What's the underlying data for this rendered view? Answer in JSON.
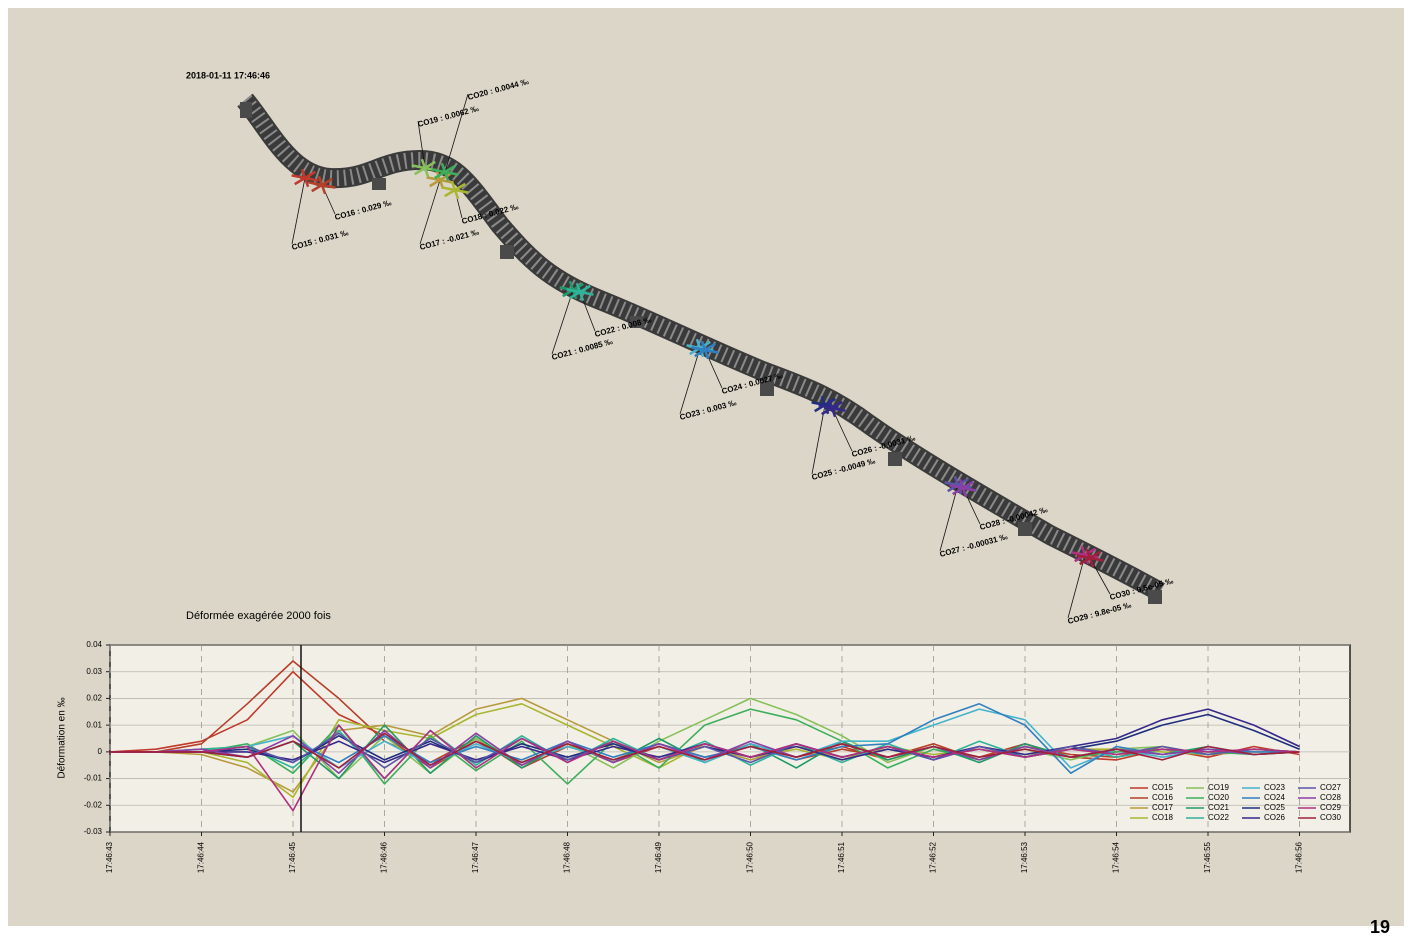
{
  "header": {
    "timestamp": "2018-01-11 17:46:46",
    "caption": "Déformée exagérée 2000 fois"
  },
  "bridge": {
    "sensors": [
      "CO15 : 0.031 ‰",
      "CO16 : 0.029 ‰",
      "CO17 : -0.021 ‰",
      "CO18 : 0.022 ‰",
      "CO19 : 0.0062 ‰",
      "CO20 : 0.0044 ‰",
      "CO21 : 0.0085 ‰",
      "CO22 : 0.008 ‰",
      "CO23 : 0.003 ‰",
      "CO24 : 0.0027 ‰",
      "CO25 : -0.0049 ‰",
      "CO26 : -0.0031 ‰",
      "CO27 : -0.00031 ‰",
      "CO28 : -0.00042 ‰",
      "CO29 : 9.8e-05 ‰",
      "CO30 : 9.5e-05 ‰"
    ]
  },
  "page_number": "19",
  "chart_data": {
    "type": "line",
    "ylabel": "Déformation en ‰",
    "categories": [
      "17:46:43",
      null,
      "17:46:44",
      null,
      "17:46:45",
      null,
      "17:46:46",
      null,
      "17:46:47",
      null,
      "17:46:48",
      null,
      "17:46:49",
      null,
      "17:46:50",
      null,
      "17:46:51",
      null,
      "17:46:52",
      null,
      "17:46:53",
      null,
      "17:46:54",
      null,
      "17:46:55",
      null,
      "17:46:56"
    ],
    "ylim": [
      -0.03,
      0.04
    ],
    "yticks": [
      -0.03,
      -0.02,
      -0.01,
      0,
      0.01,
      0.02,
      0.03,
      0.04
    ],
    "grid": true,
    "series": [
      {
        "name": "CO15",
        "color": "#c0392b",
        "values": [
          0,
          0.001,
          0.004,
          0.012,
          0.03,
          0.014,
          0.006,
          -0.006,
          0.004,
          -0.005,
          0.003,
          -0.004,
          0.002,
          -0.003,
          0.003,
          -0.002,
          0.002,
          -0.003,
          0.002,
          -0.002,
          0.003,
          -0.002,
          -0.003,
          0.001,
          -0.002,
          0.002,
          -0.001
        ]
      },
      {
        "name": "CO16",
        "color": "#b5402a",
        "values": [
          0,
          0,
          0.003,
          0.018,
          0.034,
          0.02,
          0.004,
          -0.004,
          0.005,
          -0.006,
          0.002,
          -0.003,
          0.003,
          -0.002,
          0.002,
          -0.003,
          0.001,
          -0.002,
          0.003,
          -0.003,
          0.002,
          -0.001,
          -0.002,
          0.002,
          -0.001,
          0.001,
          0
        ]
      },
      {
        "name": "CO17",
        "color": "#b89a3c",
        "values": [
          0,
          0,
          -0.001,
          -0.006,
          -0.015,
          0.008,
          0.01,
          0.006,
          0.016,
          0.02,
          0.012,
          0.004,
          -0.004,
          0.002,
          -0.003,
          0.002,
          -0.002,
          0.001,
          -0.002,
          0.002,
          -0.001,
          0.001,
          0,
          0.001,
          -0.001,
          0,
          0
        ]
      },
      {
        "name": "CO18",
        "color": "#aab530",
        "values": [
          0,
          0,
          0,
          -0.004,
          -0.017,
          0.012,
          0.008,
          0.005,
          0.014,
          0.018,
          0.01,
          0.002,
          -0.006,
          0.003,
          -0.002,
          0.001,
          -0.003,
          0.002,
          -0.001,
          0.001,
          -0.002,
          0.001,
          0.001,
          0,
          -0.001,
          0.001,
          0
        ]
      },
      {
        "name": "CO19",
        "color": "#86c05a",
        "values": [
          0,
          0,
          0.001,
          0.002,
          0.008,
          -0.01,
          0.006,
          -0.008,
          0.005,
          -0.004,
          0.003,
          -0.006,
          0.004,
          0.012,
          0.02,
          0.014,
          0.006,
          -0.004,
          0.002,
          -0.002,
          0.001,
          -0.003,
          0.001,
          0.002,
          -0.001,
          0.001,
          0
        ]
      },
      {
        "name": "CO20",
        "color": "#3cae5c",
        "values": [
          0,
          0,
          0,
          0.003,
          -0.008,
          0.01,
          -0.012,
          0.006,
          -0.007,
          0.004,
          -0.012,
          0.004,
          -0.006,
          0.01,
          0.016,
          0.012,
          0.004,
          -0.006,
          0.001,
          -0.003,
          0.002,
          -0.002,
          0,
          0.001,
          0,
          -0.001,
          0
        ]
      },
      {
        "name": "CO21",
        "color": "#1f9a68",
        "values": [
          0,
          0,
          0,
          -0.002,
          0.004,
          -0.01,
          0.01,
          -0.008,
          0.006,
          -0.006,
          0.004,
          -0.004,
          0.005,
          -0.004,
          0.003,
          -0.006,
          0.004,
          -0.003,
          0.002,
          -0.004,
          0.003,
          -0.002,
          0.001,
          -0.001,
          0.002,
          -0.001,
          0
        ]
      },
      {
        "name": "CO22",
        "color": "#2fb39a",
        "values": [
          0,
          0,
          0.001,
          0.002,
          -0.006,
          0.008,
          -0.01,
          0.008,
          -0.005,
          0.006,
          -0.004,
          0.005,
          -0.003,
          0.004,
          -0.005,
          0.003,
          -0.004,
          0.003,
          -0.003,
          0.004,
          -0.002,
          0.002,
          -0.002,
          0.001,
          -0.001,
          0.001,
          0
        ]
      },
      {
        "name": "CO23",
        "color": "#45b3cc",
        "values": [
          0,
          0,
          0,
          0.002,
          0.006,
          -0.006,
          0.004,
          -0.005,
          0.003,
          -0.004,
          0.002,
          -0.003,
          0.002,
          -0.004,
          0.003,
          -0.002,
          0.004,
          0.004,
          0.01,
          0.016,
          0.012,
          -0.006,
          0.001,
          -0.002,
          0.001,
          -0.001,
          0
        ]
      },
      {
        "name": "CO24",
        "color": "#2f7fc1",
        "values": [
          0,
          0,
          0,
          -0.002,
          0.004,
          -0.004,
          0.006,
          -0.004,
          0.002,
          -0.003,
          0.004,
          -0.002,
          0.003,
          -0.002,
          0.002,
          -0.003,
          0.002,
          0.003,
          0.012,
          0.018,
          0.01,
          -0.008,
          0.002,
          -0.001,
          0.001,
          0,
          0
        ]
      },
      {
        "name": "CO25",
        "color": "#1f2f7f",
        "values": [
          0,
          0,
          0,
          0.001,
          -0.004,
          0.006,
          -0.003,
          0.004,
          -0.004,
          0.003,
          -0.002,
          0.003,
          -0.003,
          0.002,
          -0.002,
          0.003,
          -0.002,
          0.002,
          -0.003,
          0.002,
          -0.002,
          0.001,
          0.004,
          0.01,
          0.014,
          0.008,
          0.001
        ]
      },
      {
        "name": "CO26",
        "color": "#35288a",
        "values": [
          0,
          0,
          0,
          0,
          -0.003,
          0.004,
          -0.004,
          0.003,
          -0.003,
          0.002,
          -0.003,
          0.002,
          -0.002,
          0.003,
          -0.002,
          0.002,
          -0.003,
          0.001,
          -0.002,
          0.002,
          -0.001,
          0.002,
          0.005,
          0.012,
          0.016,
          0.01,
          0.002
        ]
      },
      {
        "name": "CO27",
        "color": "#5a55a8",
        "values": [
          0,
          0,
          0,
          0.002,
          -0.004,
          0.007,
          -0.006,
          0.005,
          -0.004,
          0.005,
          -0.003,
          0.004,
          -0.003,
          0.002,
          -0.004,
          0.003,
          -0.002,
          0.002,
          -0.003,
          0.002,
          -0.002,
          0.002,
          -0.001,
          0.002,
          -0.001,
          0.001,
          0
        ]
      },
      {
        "name": "CO28",
        "color": "#8a3fa6",
        "values": [
          0,
          0,
          0.001,
          -0.002,
          0.006,
          -0.008,
          0.008,
          -0.006,
          0.007,
          -0.005,
          0.004,
          -0.004,
          0.003,
          -0.003,
          0.004,
          -0.002,
          0.003,
          -0.002,
          0.002,
          -0.003,
          0.002,
          -0.002,
          0.001,
          -0.001,
          0.001,
          -0.001,
          0
        ]
      },
      {
        "name": "CO29",
        "color": "#b02f80",
        "values": [
          0,
          0,
          0,
          0.002,
          -0.022,
          0.01,
          -0.01,
          0.008,
          -0.006,
          0.005,
          -0.004,
          0.004,
          -0.003,
          0.003,
          -0.002,
          0.003,
          -0.002,
          0.002,
          -0.002,
          0.001,
          -0.002,
          0.001,
          -0.001,
          0.001,
          0,
          0.001,
          0
        ]
      },
      {
        "name": "CO30",
        "color": "#a0203c",
        "values": [
          0,
          0,
          0,
          -0.002,
          0.004,
          -0.006,
          0.007,
          -0.005,
          0.004,
          -0.004,
          0.003,
          -0.003,
          0.002,
          -0.003,
          0.002,
          -0.002,
          0.003,
          -0.002,
          0.002,
          -0.002,
          0.001,
          -0.002,
          0.001,
          -0.003,
          0.002,
          -0.001,
          0
        ]
      }
    ]
  }
}
